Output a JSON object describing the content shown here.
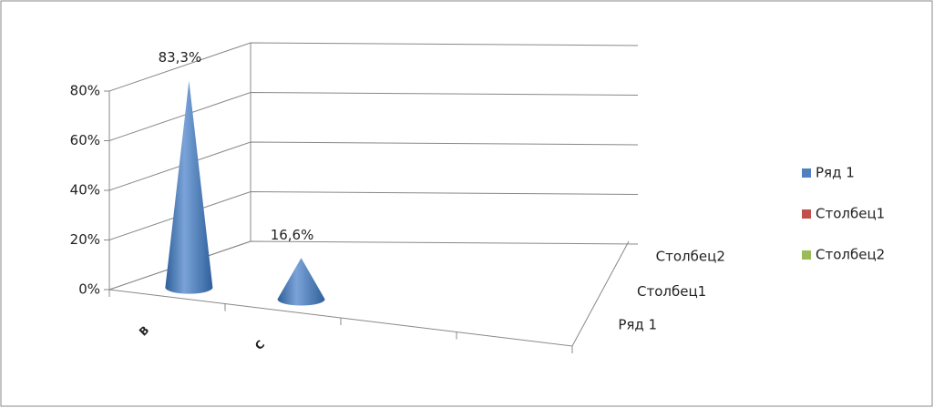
{
  "chart_data": {
    "type": "cone3d",
    "categories": [
      "B",
      "C",
      null,
      null
    ],
    "series": [
      {
        "name": "Ряд 1",
        "color": "#4f81bd",
        "values": [
          83.3,
          16.6,
          null,
          null
        ],
        "value_labels": [
          "83,3%",
          "16,6%",
          null,
          null
        ]
      },
      {
        "name": "Столбец1",
        "color": "#c0504d",
        "values": [
          null,
          null,
          null,
          null
        ]
      },
      {
        "name": "Столбец2",
        "color": "#9bbb59",
        "values": [
          null,
          null,
          null,
          null
        ]
      }
    ],
    "ylim": [
      0,
      80
    ],
    "yticks": [
      {
        "value": 0,
        "label": "0%"
      },
      {
        "value": 20,
        "label": "20%"
      },
      {
        "value": 40,
        "label": "40%"
      },
      {
        "value": 60,
        "label": "60%"
      },
      {
        "value": 80,
        "label": "80%"
      }
    ],
    "grid": true,
    "legend": "right"
  }
}
